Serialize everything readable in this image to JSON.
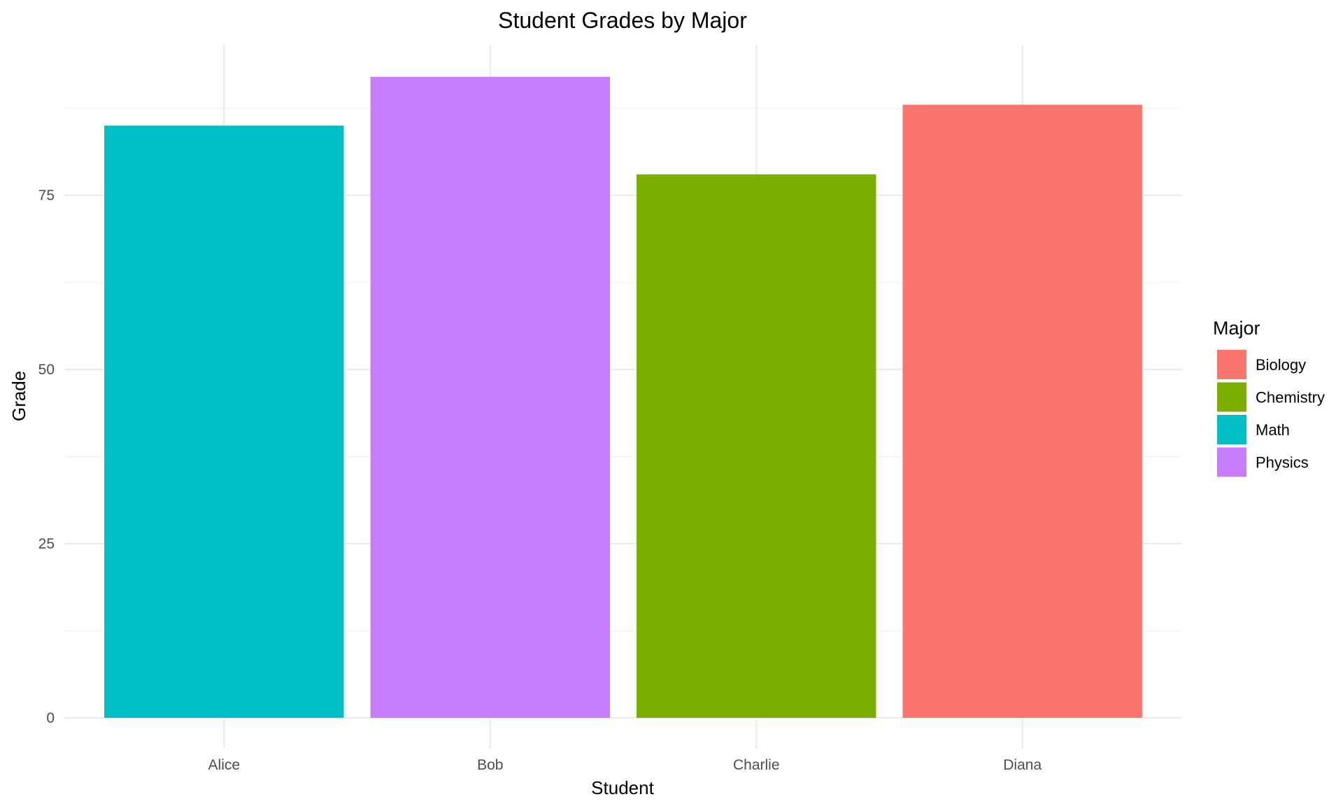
{
  "chart_data": {
    "type": "bar",
    "title": "Student Grades by Major",
    "xlabel": "Student",
    "ylabel": "Grade",
    "categories": [
      "Alice",
      "Bob",
      "Charlie",
      "Diana"
    ],
    "values": [
      85,
      92,
      78,
      88
    ],
    "majors": [
      "Math",
      "Physics",
      "Chemistry",
      "Biology"
    ],
    "ylim": [
      0,
      96.6
    ],
    "yticks": [
      0,
      25,
      50,
      75
    ],
    "grid": true,
    "legend": {
      "title": "Major",
      "placement": "right",
      "entries": [
        {
          "label": "Biology",
          "color": "#F8766D"
        },
        {
          "label": "Chemistry",
          "color": "#7CAE00"
        },
        {
          "label": "Math",
          "color": "#00BFC4"
        },
        {
          "label": "Physics",
          "color": "#C77CFF"
        }
      ]
    }
  }
}
